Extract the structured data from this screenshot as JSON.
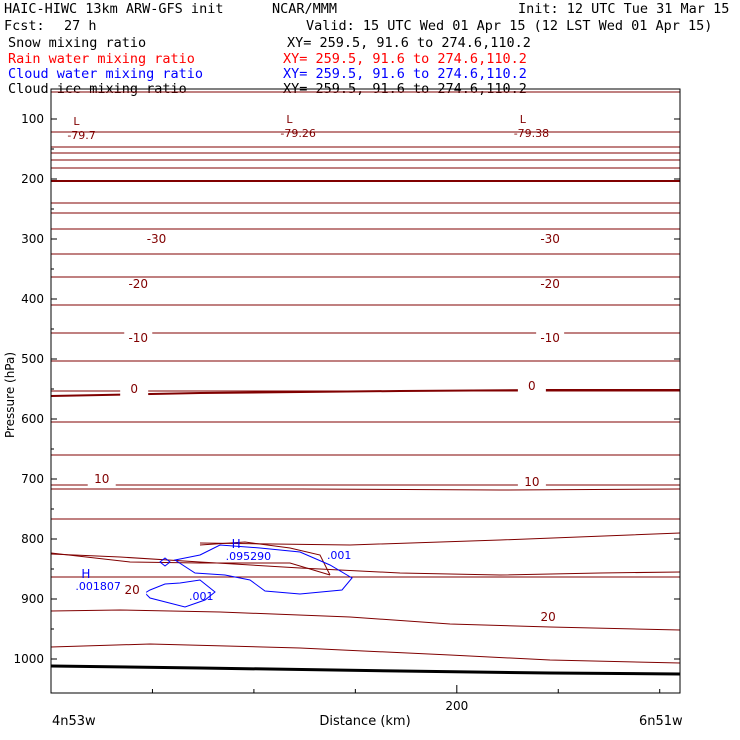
{
  "header": {
    "model": "HAIC-HIWC 13km ARW-GFS init",
    "org": "NCAR/MMM",
    "init": "Init: 12 UTC Tue 31 Mar 15",
    "fcst_label": "Fcst:",
    "fcst_value": "27 h",
    "valid": "Valid: 15 UTC Wed 01 Apr 15 (12 LST Wed 01 Apr 15)"
  },
  "fields": [
    {
      "name": "Snow mixing ratio",
      "xy": "XY= 259.5, 91.6 to 274.6,110.2",
      "color": "#000000"
    },
    {
      "name": "Rain water mixing ratio",
      "xy": "XY= 259.5, 91.6 to 274.6,110.2",
      "color": "#ff0000"
    },
    {
      "name": "Cloud water mixing ratio",
      "xy": "XY= 259.5, 91.6 to 274.6,110.2",
      "color": "#0000ff"
    },
    {
      "name": "Cloud ice mixing ratio",
      "xy": "XY= 259.5, 91.6 to 274.6,110.2",
      "color": "#000000"
    }
  ],
  "colors": {
    "temperature": "#800000",
    "cloud_water": "#0000ff",
    "ground": "#000000"
  },
  "chart_data": {
    "type": "line",
    "ylabel": "Pressure (hPa)",
    "xlabel": "Distance (km)",
    "x_start_label": "4n53w",
    "x_end_label": "6n51w",
    "xlim": [
      0,
      310
    ],
    "ylim": [
      1050,
      70
    ],
    "y_ticks": [
      100,
      200,
      300,
      400,
      500,
      600,
      700,
      800,
      900,
      1000
    ],
    "x_ticks": [
      200
    ],
    "isotherm_labels": [
      {
        "text": "-30",
        "x": 52,
        "p": 305
      },
      {
        "text": "-30",
        "x": 246,
        "p": 305
      },
      {
        "text": "-20",
        "x": 43,
        "p": 380
      },
      {
        "text": "-20",
        "x": 246,
        "p": 380
      },
      {
        "text": "-10",
        "x": 43,
        "p": 470
      },
      {
        "text": "-10",
        "x": 246,
        "p": 470
      },
      {
        "text": "0",
        "x": 41,
        "p": 555
      },
      {
        "text": "0",
        "x": 237,
        "p": 550
      },
      {
        "text": "10",
        "x": 25,
        "p": 705
      },
      {
        "text": "10",
        "x": 237,
        "p": 710
      },
      {
        "text": "20",
        "x": 40,
        "p": 890
      },
      {
        "text": "20",
        "x": 245,
        "p": 935
      }
    ],
    "lows": [
      {
        "symbol": "L",
        "value": "-79.7",
        "x": 11,
        "p": 87
      },
      {
        "symbol": "L",
        "value": "-79.26",
        "x": 116,
        "p": 83
      },
      {
        "symbol": "L",
        "value": "-79.38",
        "x": 231,
        "p": 83
      }
    ],
    "highs": [
      {
        "symbol": "H",
        "value": ".001807",
        "x": 15,
        "p": 865
      },
      {
        "symbol": "H",
        "value": ".095290",
        "x": 89,
        "p": 815
      }
    ],
    "cloud_labels": [
      {
        "text": ".001",
        "x": 136,
        "p": 833
      },
      {
        "text": ".001",
        "x": 68,
        "p": 902
      }
    ]
  }
}
